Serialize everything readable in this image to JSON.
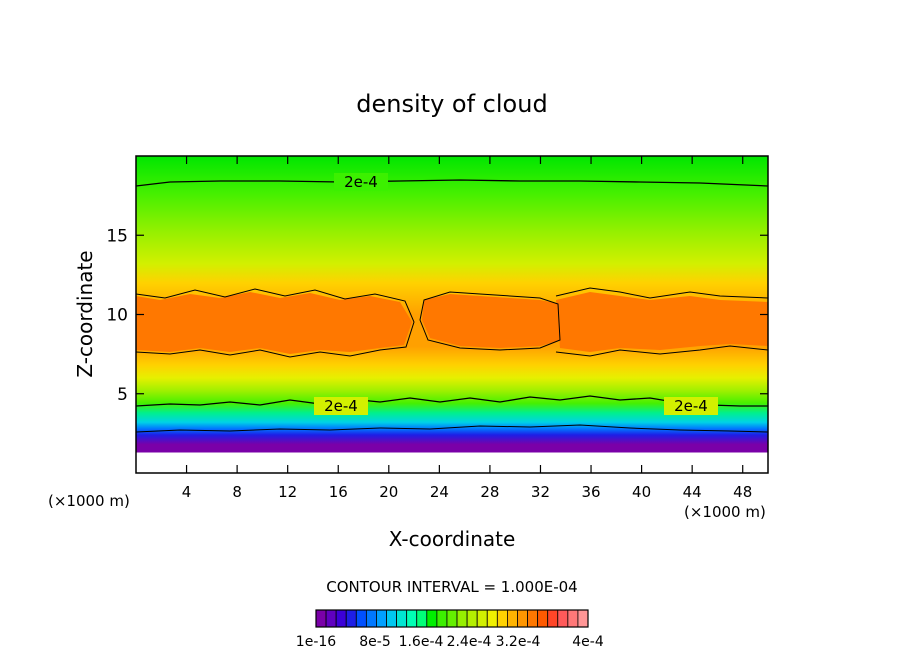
{
  "chart_data": {
    "type": "heatmap",
    "title": "density of cloud",
    "xlabel": "X-coordinate",
    "ylabel": "Z-coordinate",
    "x_unit_label": "(×1000 m)",
    "y_unit_label": "(×1000 m)",
    "xlim": [
      0,
      50
    ],
    "ylim": [
      0,
      20
    ],
    "x_ticks": [
      4,
      8,
      12,
      16,
      20,
      24,
      28,
      32,
      36,
      40,
      44,
      48
    ],
    "y_ticks": [
      5,
      10,
      15
    ],
    "contour_interval_text": "CONTOUR INTERVAL = 1.000E-04",
    "contour_labels": [
      {
        "text": "2e-4",
        "x": 16.5,
        "y": 18.3
      },
      {
        "text": "2e-4",
        "x": 14.8,
        "y": 4.3
      },
      {
        "text": "2e-4",
        "x": 44.3,
        "y": 4.3
      }
    ],
    "colorbar": {
      "colors": [
        "#7a00a8",
        "#6000c0",
        "#3c00d8",
        "#1e1ee6",
        "#0050ff",
        "#0078ff",
        "#00a0ff",
        "#00c8f0",
        "#00e6d2",
        "#00ffb4",
        "#00ff78",
        "#00f000",
        "#3cf000",
        "#64f000",
        "#96f000",
        "#b4f000",
        "#d2f000",
        "#f0f000",
        "#ffd200",
        "#ffb400",
        "#ff9600",
        "#ff7800",
        "#ff5a00",
        "#ff4628",
        "#ff5a5a",
        "#ff7878",
        "#ff9696"
      ],
      "tick_labels": [
        "1e-16",
        "8e-5",
        "1.6e-4",
        "2.4e-4",
        "3.2e-4",
        "4e-4"
      ]
    }
  }
}
